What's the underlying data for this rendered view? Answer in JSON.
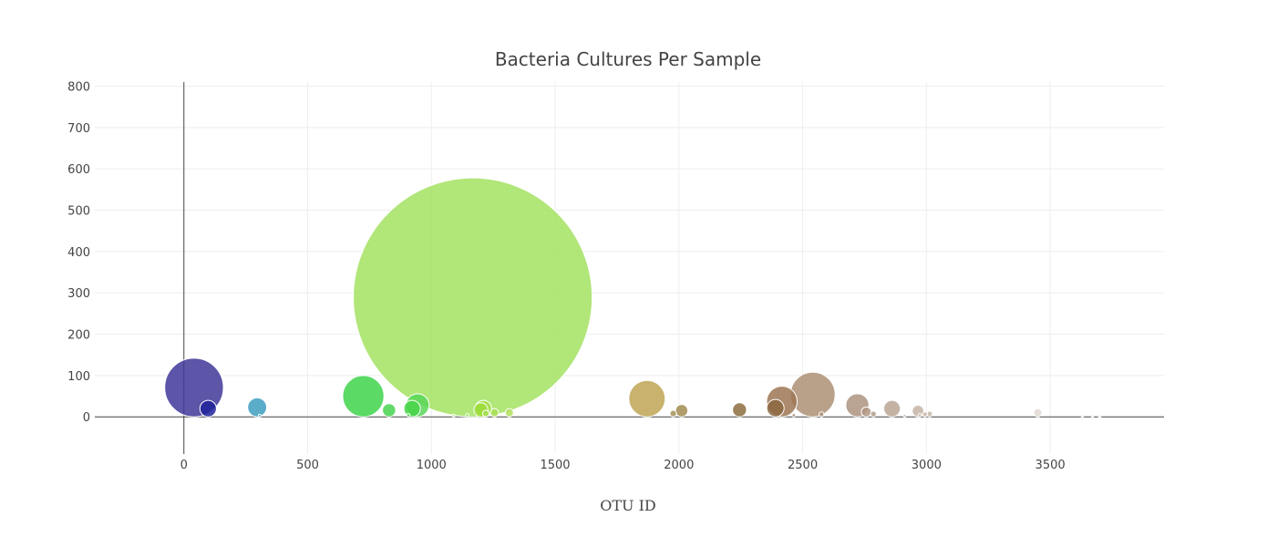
{
  "chart_data": {
    "type": "scatter",
    "title": "Bacteria Cultures Per Sample",
    "xlabel": "OTU ID",
    "ylabel": "",
    "xlim": [
      -360,
      3960
    ],
    "ylim": [
      -90,
      810
    ],
    "xticks": [
      0,
      500,
      1000,
      1500,
      2000,
      2500,
      3000,
      3500
    ],
    "yticks": [
      0,
      100,
      200,
      300,
      400,
      500,
      600,
      700,
      800
    ],
    "grid": true,
    "legend": "none",
    "series": [
      {
        "points": [
          {
            "x": 41,
            "y": 71,
            "size": 71,
            "color": "#3f3799"
          },
          {
            "x": 98,
            "y": 20,
            "size": 20,
            "color": "#20239a"
          },
          {
            "x": 296,
            "y": 23,
            "size": 23,
            "color": "#3d9dc0"
          },
          {
            "x": 306,
            "y": 3,
            "size": 3,
            "color": "#4aa4c2"
          },
          {
            "x": 725,
            "y": 50,
            "size": 50,
            "color": "#3ed34b"
          },
          {
            "x": 829,
            "y": 16,
            "size": 16,
            "color": "#47d44f"
          },
          {
            "x": 907,
            "y": 4,
            "size": 4,
            "color": "#52d655"
          },
          {
            "x": 922,
            "y": 20,
            "size": 20,
            "color": "#45d347"
          },
          {
            "x": 944,
            "y": 28,
            "size": 28,
            "color": "#58d657"
          },
          {
            "x": 1167,
            "y": 289,
            "size": 289,
            "color": "#a3e262"
          },
          {
            "x": 1090,
            "y": 3,
            "size": 3,
            "color": "#9ee05f"
          },
          {
            "x": 1145,
            "y": 4,
            "size": 4,
            "color": "#9ee05f"
          },
          {
            "x": 1200,
            "y": 17,
            "size": 17,
            "color": "#9bdc3b"
          },
          {
            "x": 1210,
            "y": 20,
            "size": 20,
            "color": "#a4de4a"
          },
          {
            "x": 1220,
            "y": 8,
            "size": 8,
            "color": "#a6de52"
          },
          {
            "x": 1255,
            "y": 10,
            "size": 10,
            "color": "#a8de55"
          },
          {
            "x": 1315,
            "y": 10,
            "size": 10,
            "color": "#b0df5e"
          },
          {
            "x": 1871,
            "y": 44,
            "size": 44,
            "color": "#bea554"
          },
          {
            "x": 1977,
            "y": 8,
            "size": 8,
            "color": "#a6905a"
          },
          {
            "x": 2011,
            "y": 15,
            "size": 15,
            "color": "#a28c50"
          },
          {
            "x": 2245,
            "y": 17,
            "size": 17,
            "color": "#8b6d40"
          },
          {
            "x": 2390,
            "y": 21,
            "size": 21,
            "color": "#8b6641"
          },
          {
            "x": 2416,
            "y": 37,
            "size": 37,
            "color": "#9d7654"
          },
          {
            "x": 2464,
            "y": 4,
            "size": 4,
            "color": "#9e7d5f"
          },
          {
            "x": 2541,
            "y": 54,
            "size": 54,
            "color": "#ad8f74"
          },
          {
            "x": 2576,
            "y": 6,
            "size": 6,
            "color": "#b09276"
          },
          {
            "x": 2721,
            "y": 28,
            "size": 28,
            "color": "#ad9380"
          },
          {
            "x": 2757,
            "y": 12,
            "size": 12,
            "color": "#b09782"
          },
          {
            "x": 2786,
            "y": 7,
            "size": 7,
            "color": "#b29b88"
          },
          {
            "x": 2861,
            "y": 20,
            "size": 20,
            "color": "#baa593"
          },
          {
            "x": 2912,
            "y": 3,
            "size": 3,
            "color": "#c0ad9d"
          },
          {
            "x": 2966,
            "y": 14,
            "size": 14,
            "color": "#c4b3a4"
          },
          {
            "x": 2973,
            "y": 4,
            "size": 4,
            "color": "#c5b5a7"
          },
          {
            "x": 2994,
            "y": 6,
            "size": 6,
            "color": "#c8b9ab"
          },
          {
            "x": 3013,
            "y": 7,
            "size": 7,
            "color": "#c8baac"
          },
          {
            "x": 3450,
            "y": 10,
            "size": 10,
            "color": "#e2d8d0"
          },
          {
            "x": 3630,
            "y": 3,
            "size": 3,
            "color": "#ece5df"
          },
          {
            "x": 3671,
            "y": 3,
            "size": 3,
            "color": "#eee8e3"
          },
          {
            "x": 3700,
            "y": 2,
            "size": 2,
            "color": "#f0ebe6"
          }
        ]
      }
    ]
  }
}
